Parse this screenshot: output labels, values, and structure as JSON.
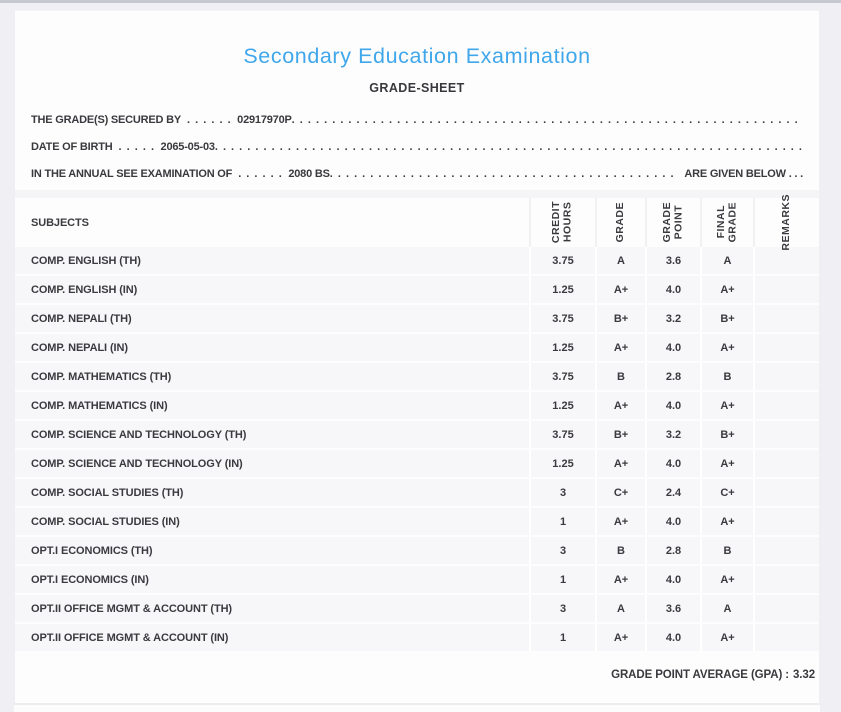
{
  "header": {
    "title": "Secondary Education Examination",
    "subtitle": "GRADE-SHEET"
  },
  "colors": {
    "accent_blue": "#3fa7ea",
    "text_dark": "#3a3a3e",
    "row_background": "#f7f7f9"
  },
  "info": {
    "dot_fill": ". . . . . . . . . . . . . . . . . . . . . . . . . . . . . . . . . . . . . . . . . . . . . . . . . . . . . . . . . . . . . . . . . . . . . . . . . . . . . . . . . . . . . . . . . . . . . . . . . . . . . . . . . . . . . . . .",
    "lines": [
      {
        "label": "THE GRADE(S) SECURED BY",
        "gap_dots": ". . . . . .",
        "value": "02917970P",
        "tail": ""
      },
      {
        "label": "DATE OF BIRTH",
        "gap_dots": ". . . . .",
        "value": "2065-05-03",
        "tail": ""
      },
      {
        "label": "IN THE ANNUAL SEE EXAMINATION OF",
        "gap_dots": ". . . . . .",
        "value": "2080 BS",
        "tail": "ARE GIVEN BELOW . . ."
      }
    ]
  },
  "table": {
    "columns": [
      "SUBJECTS",
      "CREDIT HOURS",
      "GRADE",
      "GRADE POINT",
      "FINAL GRADE",
      "REMARKS"
    ],
    "subjects_label": "SUBJECTS",
    "header_labels": [
      "CREDIT\nHOURS",
      "GRADE",
      "GRADE\nPOINT",
      "FINAL\nGRADE",
      "REMARKS"
    ],
    "rows": [
      {
        "subject": "COMP. ENGLISH (TH)",
        "credit": "3.75",
        "grade": "A",
        "point": "3.6",
        "final": "A",
        "remarks": ""
      },
      {
        "subject": "COMP. ENGLISH (IN)",
        "credit": "1.25",
        "grade": "A+",
        "point": "4.0",
        "final": "A+",
        "remarks": ""
      },
      {
        "subject": "COMP. NEPALI (TH)",
        "credit": "3.75",
        "grade": "B+",
        "point": "3.2",
        "final": "B+",
        "remarks": ""
      },
      {
        "subject": "COMP. NEPALI (IN)",
        "credit": "1.25",
        "grade": "A+",
        "point": "4.0",
        "final": "A+",
        "remarks": ""
      },
      {
        "subject": "COMP. MATHEMATICS (TH)",
        "credit": "3.75",
        "grade": "B",
        "point": "2.8",
        "final": "B",
        "remarks": ""
      },
      {
        "subject": "COMP. MATHEMATICS (IN)",
        "credit": "1.25",
        "grade": "A+",
        "point": "4.0",
        "final": "A+",
        "remarks": ""
      },
      {
        "subject": "COMP. SCIENCE AND TECHNOLOGY (TH)",
        "credit": "3.75",
        "grade": "B+",
        "point": "3.2",
        "final": "B+",
        "remarks": ""
      },
      {
        "subject": "COMP. SCIENCE AND TECHNOLOGY (IN)",
        "credit": "1.25",
        "grade": "A+",
        "point": "4.0",
        "final": "A+",
        "remarks": ""
      },
      {
        "subject": "COMP. SOCIAL STUDIES (TH)",
        "credit": "3",
        "grade": "C+",
        "point": "2.4",
        "final": "C+",
        "remarks": ""
      },
      {
        "subject": "COMP. SOCIAL STUDIES (IN)",
        "credit": "1",
        "grade": "A+",
        "point": "4.0",
        "final": "A+",
        "remarks": ""
      },
      {
        "subject": "OPT.I ECONOMICS (TH)",
        "credit": "3",
        "grade": "B",
        "point": "2.8",
        "final": "B",
        "remarks": ""
      },
      {
        "subject": "OPT.I ECONOMICS (IN)",
        "credit": "1",
        "grade": "A+",
        "point": "4.0",
        "final": "A+",
        "remarks": ""
      },
      {
        "subject": "OPT.II OFFICE MGMT & ACCOUNT (TH)",
        "credit": "3",
        "grade": "A",
        "point": "3.6",
        "final": "A",
        "remarks": ""
      },
      {
        "subject": "OPT.II OFFICE MGMT & ACCOUNT (IN)",
        "credit": "1",
        "grade": "A+",
        "point": "4.0",
        "final": "A+",
        "remarks": ""
      }
    ]
  },
  "summary": {
    "gpa_label": "GRADE POINT AVERAGE (GPA) :",
    "gpa_value": "3.32"
  }
}
